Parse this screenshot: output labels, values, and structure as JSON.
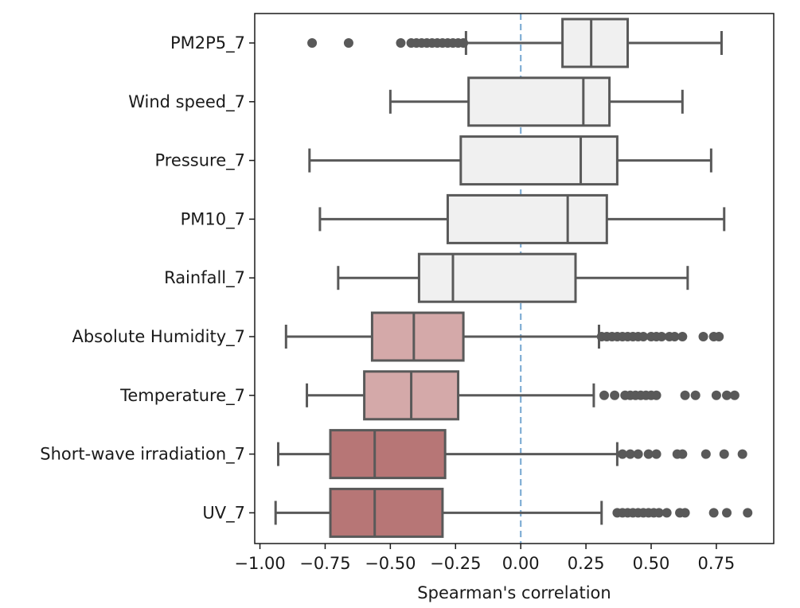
{
  "chart_data": {
    "type": "boxplot",
    "orientation": "horizontal",
    "title": "",
    "xlabel": "Spearman's correlation",
    "ylabel": "",
    "xlim": [
      -1.02,
      0.97
    ],
    "xticks": [
      -1.0,
      -0.75,
      -0.5,
      -0.25,
      0.0,
      0.25,
      0.5,
      0.75
    ],
    "xtick_labels": [
      "−1.00",
      "−0.75",
      "−0.50",
      "−0.25",
      "0.00",
      "0.25",
      "0.50",
      "0.75"
    ],
    "reference_line": {
      "x": 0.0,
      "style": "dashed",
      "color": "#7fadd4"
    },
    "grid": false,
    "colors": {
      "light": "#f0f0f0",
      "medium": "#d4a9a9",
      "dark": "#b77676",
      "box_edge": "#595959",
      "flier": "#595959"
    },
    "series": [
      {
        "name": "PM2P5_7",
        "color": "light",
        "whisker_low": -0.21,
        "q1": 0.16,
        "median": 0.27,
        "q3": 0.41,
        "whisker_high": 0.77,
        "fliers": [
          -0.8,
          -0.66,
          -0.46,
          -0.42,
          -0.4,
          -0.38,
          -0.36,
          -0.34,
          -0.32,
          -0.3,
          -0.28,
          -0.26,
          -0.24,
          -0.22
        ]
      },
      {
        "name": "Wind speed_7",
        "color": "light",
        "whisker_low": -0.5,
        "q1": -0.2,
        "median": 0.24,
        "q3": 0.34,
        "whisker_high": 0.62,
        "fliers": []
      },
      {
        "name": "Pressure_7",
        "color": "light",
        "whisker_low": -0.81,
        "q1": -0.23,
        "median": 0.23,
        "q3": 0.37,
        "whisker_high": 0.73,
        "fliers": []
      },
      {
        "name": "PM10_7",
        "color": "light",
        "whisker_low": -0.77,
        "q1": -0.28,
        "median": 0.18,
        "q3": 0.33,
        "whisker_high": 0.78,
        "fliers": []
      },
      {
        "name": "Rainfall_7",
        "color": "light",
        "whisker_low": -0.7,
        "q1": -0.39,
        "median": -0.26,
        "q3": 0.21,
        "whisker_high": 0.64,
        "fliers": []
      },
      {
        "name": "Absolute Humidity_7",
        "color": "medium",
        "whisker_low": -0.9,
        "q1": -0.57,
        "median": -0.41,
        "q3": -0.22,
        "whisker_high": 0.3,
        "fliers": [
          0.31,
          0.33,
          0.35,
          0.37,
          0.39,
          0.41,
          0.43,
          0.45,
          0.47,
          0.5,
          0.52,
          0.54,
          0.57,
          0.59,
          0.62,
          0.7,
          0.74,
          0.76
        ]
      },
      {
        "name": "Temperature_7",
        "color": "medium",
        "whisker_low": -0.82,
        "q1": -0.6,
        "median": -0.42,
        "q3": -0.24,
        "whisker_high": 0.28,
        "fliers": [
          0.32,
          0.36,
          0.4,
          0.42,
          0.44,
          0.46,
          0.48,
          0.5,
          0.52,
          0.63,
          0.67,
          0.75,
          0.79,
          0.82
        ]
      },
      {
        "name": "Short-wave irradiation_7",
        "color": "dark",
        "whisker_low": -0.93,
        "q1": -0.73,
        "median": -0.56,
        "q3": -0.29,
        "whisker_high": 0.37,
        "fliers": [
          0.39,
          0.42,
          0.45,
          0.49,
          0.52,
          0.6,
          0.62,
          0.71,
          0.78,
          0.85
        ]
      },
      {
        "name": "UV_7",
        "color": "dark",
        "whisker_low": -0.94,
        "q1": -0.73,
        "median": -0.56,
        "q3": -0.3,
        "whisker_high": 0.31,
        "fliers": [
          0.37,
          0.39,
          0.41,
          0.43,
          0.45,
          0.47,
          0.49,
          0.51,
          0.53,
          0.56,
          0.61,
          0.63,
          0.74,
          0.79,
          0.87
        ]
      }
    ]
  }
}
